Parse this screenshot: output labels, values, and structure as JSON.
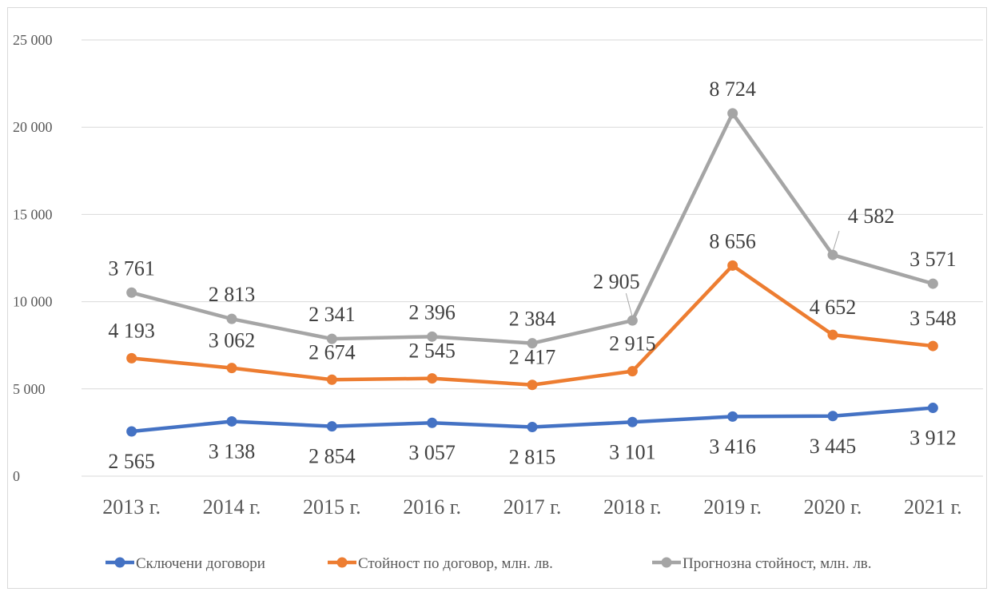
{
  "chart_data": {
    "type": "line",
    "title": "",
    "xlabel": "",
    "ylabel": "",
    "categories": [
      "2013 г.",
      "2014 г.",
      "2015 г.",
      "2016 г.",
      "2017 г.",
      "2018 г.",
      "2019 г.",
      "2020 г.",
      "2021 г."
    ],
    "y_ticks": [
      "0",
      "5 000",
      "10 000",
      "15 000",
      "20 000",
      "25 000"
    ],
    "ylim": [
      0,
      25000
    ],
    "stacked": true,
    "grid": true,
    "legend_position": "bottom",
    "series": [
      {
        "name": "Сключени договори",
        "color": "#4472c4",
        "values": [
          2565,
          3138,
          2854,
          3057,
          2815,
          3101,
          3416,
          3445,
          3912
        ],
        "labels": [
          "2 565",
          "3 138",
          "2 854",
          "3 057",
          "2 815",
          "3 101",
          "3 416",
          "3 445",
          "3 912"
        ]
      },
      {
        "name": "Стойност по договор, млн. лв.",
        "color": "#ed7d31",
        "values": [
          4193,
          3062,
          2674,
          2545,
          2417,
          2915,
          8656,
          4652,
          3548
        ],
        "labels": [
          "4 193",
          "3 062",
          "2 674",
          "2 545",
          "2 417",
          "2 915",
          "8 656",
          "4 652",
          "3 548"
        ]
      },
      {
        "name": "Прогнозна стойност, млн. лв.",
        "color": "#a5a5a5",
        "values": [
          3761,
          2813,
          2341,
          2396,
          2384,
          2905,
          8724,
          4582,
          3571
        ],
        "labels": [
          "3 761",
          "2 813",
          "2 341",
          "2 396",
          "2 384",
          "2 905",
          "8 724",
          "4 582",
          "3 571"
        ]
      }
    ]
  }
}
